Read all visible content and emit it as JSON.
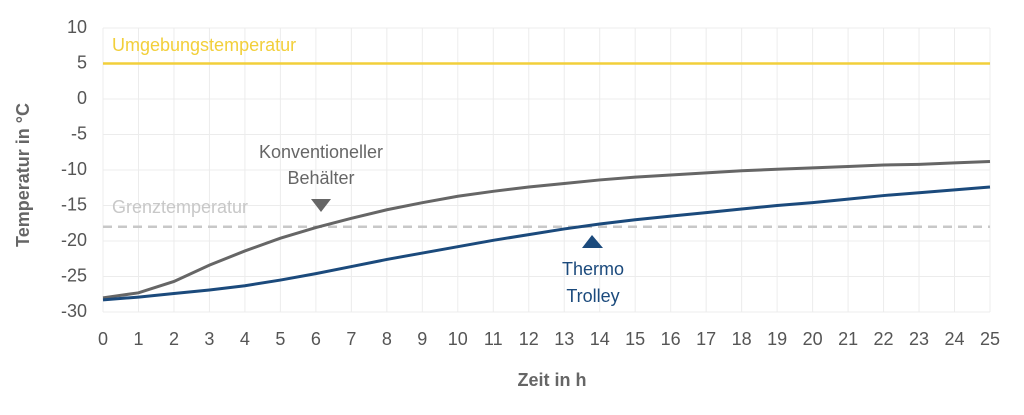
{
  "chart_data": {
    "type": "line",
    "x_label": "Zeit in h",
    "y_label": "Temperatur in °C",
    "x": [
      0,
      1,
      2,
      3,
      4,
      5,
      6,
      7,
      8,
      9,
      10,
      11,
      12,
      13,
      14,
      15,
      16,
      17,
      18,
      19,
      20,
      21,
      22,
      23,
      24,
      25
    ],
    "xlim": [
      0,
      25
    ],
    "xticks": [
      0,
      1,
      2,
      3,
      4,
      5,
      6,
      7,
      8,
      9,
      10,
      11,
      12,
      13,
      14,
      15,
      16,
      17,
      18,
      19,
      20,
      21,
      22,
      23,
      24,
      25
    ],
    "ylim": [
      -30,
      10
    ],
    "yticks": [
      -30,
      -25,
      -20,
      -15,
      -10,
      -5,
      0,
      5,
      10
    ],
    "grid": true,
    "reference_lines": [
      {
        "label": "Umgebungstemperatur",
        "value": 5,
        "color": "#f2cf3a",
        "dashed": false
      },
      {
        "label": "Grenztemperatur",
        "value": -18,
        "color": "#c8c8c8",
        "dashed": true
      }
    ],
    "series": [
      {
        "label_lines": [
          "Konventioneller",
          "Behälter"
        ],
        "color": "#666666",
        "values": [
          -28,
          -27.3,
          -25.7,
          -23.4,
          -21.4,
          -19.6,
          -18.1,
          -16.8,
          -15.6,
          -14.6,
          -13.7,
          -13,
          -12.4,
          -11.9,
          -11.4,
          -11,
          -10.7,
          -10.4,
          -10.1,
          -9.9,
          -9.7,
          -9.5,
          -9.3,
          -9.2,
          -9,
          -8.8
        ]
      },
      {
        "label_lines": [
          "Thermo",
          "Trolley"
        ],
        "color": "#1b4a7c",
        "values": [
          -28.3,
          -27.9,
          -27.4,
          -26.9,
          -26.3,
          -25.5,
          -24.6,
          -23.6,
          -22.6,
          -21.7,
          -20.8,
          -19.9,
          -19.1,
          -18.3,
          -17.6,
          -17,
          -16.5,
          -16,
          -15.5,
          -15,
          -14.6,
          -14.1,
          -13.6,
          -13.2,
          -12.8,
          -12.4
        ]
      }
    ]
  }
}
